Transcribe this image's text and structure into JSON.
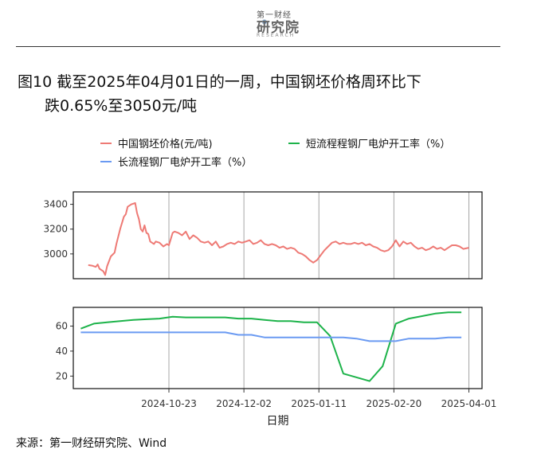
{
  "header": {
    "logo_small": "第一财经",
    "logo_main": "研究院",
    "logo_en": "RESEARCH"
  },
  "title": {
    "line1": "图10  截至2025年04月01日的一周，中国钢坯价格周环比下",
    "line2": "跌0.65%至3050元/吨"
  },
  "source": "来源：第一财经研究院、Wind",
  "colors": {
    "billet": "#ee7a75",
    "short_process": "#1db34a",
    "long_process": "#6a9af2"
  },
  "chart_data": [
    {
      "type": "line",
      "panel": "top",
      "ylim": [
        2800,
        3500
      ],
      "yticks": [
        3000,
        3200,
        3400
      ],
      "series": [
        {
          "name": "中国钢坯价格(元/吨)",
          "color": "#ee7a75",
          "points": [
            [
              "2024-09-10",
              2910
            ],
            [
              "2024-09-12",
              2905
            ],
            [
              "2024-09-14",
              2895
            ],
            [
              "2024-09-15",
              2915
            ],
            [
              "2024-09-16",
              2880
            ],
            [
              "2024-09-18",
              2860
            ],
            [
              "2024-09-19",
              2830
            ],
            [
              "2024-09-20",
              2900
            ],
            [
              "2024-09-22",
              2980
            ],
            [
              "2024-09-24",
              3010
            ],
            [
              "2024-09-25",
              3080
            ],
            [
              "2024-09-27",
              3200
            ],
            [
              "2024-09-29",
              3300
            ],
            [
              "2024-09-30",
              3320
            ],
            [
              "2024-10-01",
              3380
            ],
            [
              "2024-10-03",
              3400
            ],
            [
              "2024-10-05",
              3410
            ],
            [
              "2024-10-06",
              3330
            ],
            [
              "2024-10-07",
              3280
            ],
            [
              "2024-10-08",
              3200
            ],
            [
              "2024-10-09",
              3180
            ],
            [
              "2024-10-10",
              3230
            ],
            [
              "2024-10-11",
              3170
            ],
            [
              "2024-10-12",
              3160
            ],
            [
              "2024-10-13",
              3100
            ],
            [
              "2024-10-14",
              3090
            ],
            [
              "2024-10-15",
              3080
            ],
            [
              "2024-10-16",
              3100
            ],
            [
              "2024-10-18",
              3090
            ],
            [
              "2024-10-20",
              3060
            ],
            [
              "2024-10-22",
              3080
            ],
            [
              "2024-10-23",
              3070
            ],
            [
              "2024-10-25",
              3170
            ],
            [
              "2024-10-26",
              3180
            ],
            [
              "2024-10-28",
              3170
            ],
            [
              "2024-10-30",
              3150
            ],
            [
              "2024-11-01",
              3180
            ],
            [
              "2024-11-03",
              3120
            ],
            [
              "2024-11-05",
              3150
            ],
            [
              "2024-11-07",
              3130
            ],
            [
              "2024-11-09",
              3100
            ],
            [
              "2024-11-11",
              3090
            ],
            [
              "2024-11-13",
              3100
            ],
            [
              "2024-11-15",
              3070
            ],
            [
              "2024-11-17",
              3100
            ],
            [
              "2024-11-19",
              3050
            ],
            [
              "2024-11-21",
              3060
            ],
            [
              "2024-11-23",
              3080
            ],
            [
              "2024-11-25",
              3090
            ],
            [
              "2024-11-27",
              3080
            ],
            [
              "2024-11-29",
              3100
            ],
            [
              "2024-12-01",
              3090
            ],
            [
              "2024-12-03",
              3100
            ],
            [
              "2024-12-05",
              3110
            ],
            [
              "2024-12-07",
              3080
            ],
            [
              "2024-12-09",
              3090
            ],
            [
              "2024-12-11",
              3110
            ],
            [
              "2024-12-13",
              3080
            ],
            [
              "2024-12-15",
              3070
            ],
            [
              "2024-12-17",
              3080
            ],
            [
              "2024-12-19",
              3070
            ],
            [
              "2024-12-21",
              3050
            ],
            [
              "2024-12-23",
              3060
            ],
            [
              "2024-12-25",
              3040
            ],
            [
              "2024-12-27",
              3050
            ],
            [
              "2024-12-29",
              3040
            ],
            [
              "2024-12-31",
              3010
            ],
            [
              "2025-01-02",
              3000
            ],
            [
              "2025-01-04",
              2980
            ],
            [
              "2025-01-06",
              2950
            ],
            [
              "2025-01-08",
              2930
            ],
            [
              "2025-01-10",
              2950
            ],
            [
              "2025-01-12",
              2990
            ],
            [
              "2025-01-14",
              3030
            ],
            [
              "2025-01-16",
              3060
            ],
            [
              "2025-01-18",
              3090
            ],
            [
              "2025-01-20",
              3100
            ],
            [
              "2025-01-22",
              3080
            ],
            [
              "2025-01-24",
              3090
            ],
            [
              "2025-01-26",
              3080
            ],
            [
              "2025-01-28",
              3080
            ],
            [
              "2025-01-30",
              3090
            ],
            [
              "2025-02-01",
              3080
            ],
            [
              "2025-02-03",
              3090
            ],
            [
              "2025-02-05",
              3070
            ],
            [
              "2025-02-07",
              3080
            ],
            [
              "2025-02-09",
              3060
            ],
            [
              "2025-02-11",
              3050
            ],
            [
              "2025-02-13",
              3030
            ],
            [
              "2025-02-15",
              3020
            ],
            [
              "2025-02-17",
              3030
            ],
            [
              "2025-02-19",
              3060
            ],
            [
              "2025-02-21",
              3110
            ],
            [
              "2025-02-23",
              3060
            ],
            [
              "2025-02-25",
              3100
            ],
            [
              "2025-02-27",
              3080
            ],
            [
              "2025-03-01",
              3090
            ],
            [
              "2025-03-03",
              3060
            ],
            [
              "2025-03-05",
              3040
            ],
            [
              "2025-03-07",
              3050
            ],
            [
              "2025-03-09",
              3030
            ],
            [
              "2025-03-11",
              3040
            ],
            [
              "2025-03-13",
              3060
            ],
            [
              "2025-03-15",
              3040
            ],
            [
              "2025-03-17",
              3050
            ],
            [
              "2025-03-19",
              3030
            ],
            [
              "2025-03-21",
              3050
            ],
            [
              "2025-03-23",
              3070
            ],
            [
              "2025-03-25",
              3070
            ],
            [
              "2025-03-27",
              3060
            ],
            [
              "2025-03-29",
              3040
            ],
            [
              "2025-04-01",
              3050
            ]
          ]
        }
      ]
    },
    {
      "type": "line",
      "panel": "bottom",
      "ylim": [
        10,
        75
      ],
      "yticks": [
        20,
        40,
        60
      ],
      "xticks": [
        "2024-10-23",
        "2024-12-02",
        "2025-01-11",
        "2025-02-20",
        "2025-04-01"
      ],
      "xlabel": "日期",
      "series": [
        {
          "name": "短流程程钢厂电炉开工率（%）",
          "color": "#1db34a",
          "points": [
            [
              "2024-09-06",
              58
            ],
            [
              "2024-09-13",
              62
            ],
            [
              "2024-09-20",
              63
            ],
            [
              "2024-09-27",
              64
            ],
            [
              "2024-10-04",
              65
            ],
            [
              "2024-10-11",
              65.5
            ],
            [
              "2024-10-18",
              66
            ],
            [
              "2024-10-25",
              67.5
            ],
            [
              "2024-11-01",
              67
            ],
            [
              "2024-11-08",
              67
            ],
            [
              "2024-11-15",
              67
            ],
            [
              "2024-11-22",
              67
            ],
            [
              "2024-11-29",
              66
            ],
            [
              "2024-12-06",
              66
            ],
            [
              "2024-12-13",
              65
            ],
            [
              "2024-12-20",
              64
            ],
            [
              "2024-12-27",
              64
            ],
            [
              "2025-01-03",
              63
            ],
            [
              "2025-01-10",
              63
            ],
            [
              "2025-01-17",
              52
            ],
            [
              "2025-01-24",
              22
            ],
            [
              "2025-02-07",
              16
            ],
            [
              "2025-02-14",
              28
            ],
            [
              "2025-02-21",
              62
            ],
            [
              "2025-02-28",
              66
            ],
            [
              "2025-03-07",
              68
            ],
            [
              "2025-03-14",
              70
            ],
            [
              "2025-03-21",
              71
            ],
            [
              "2025-03-28",
              71
            ]
          ]
        },
        {
          "name": "长流程钢厂电炉开工率（%）",
          "color": "#6a9af2",
          "points": [
            [
              "2024-09-06",
              55
            ],
            [
              "2024-09-13",
              55
            ],
            [
              "2024-09-20",
              55
            ],
            [
              "2024-09-27",
              55
            ],
            [
              "2024-10-04",
              55
            ],
            [
              "2024-10-11",
              55
            ],
            [
              "2024-10-18",
              55
            ],
            [
              "2024-10-25",
              55
            ],
            [
              "2024-11-01",
              55
            ],
            [
              "2024-11-08",
              55
            ],
            [
              "2024-11-15",
              55
            ],
            [
              "2024-11-22",
              55
            ],
            [
              "2024-11-29",
              53
            ],
            [
              "2024-12-06",
              53
            ],
            [
              "2024-12-13",
              51
            ],
            [
              "2024-12-20",
              51
            ],
            [
              "2024-12-27",
              51
            ],
            [
              "2025-01-03",
              51
            ],
            [
              "2025-01-10",
              51
            ],
            [
              "2025-01-17",
              51
            ],
            [
              "2025-01-24",
              51
            ],
            [
              "2025-01-31",
              50
            ],
            [
              "2025-02-07",
              48
            ],
            [
              "2025-02-14",
              48
            ],
            [
              "2025-02-21",
              48
            ],
            [
              "2025-02-28",
              50
            ],
            [
              "2025-03-07",
              50
            ],
            [
              "2025-03-14",
              50
            ],
            [
              "2025-03-21",
              51
            ],
            [
              "2025-03-28",
              51
            ]
          ]
        }
      ]
    }
  ]
}
